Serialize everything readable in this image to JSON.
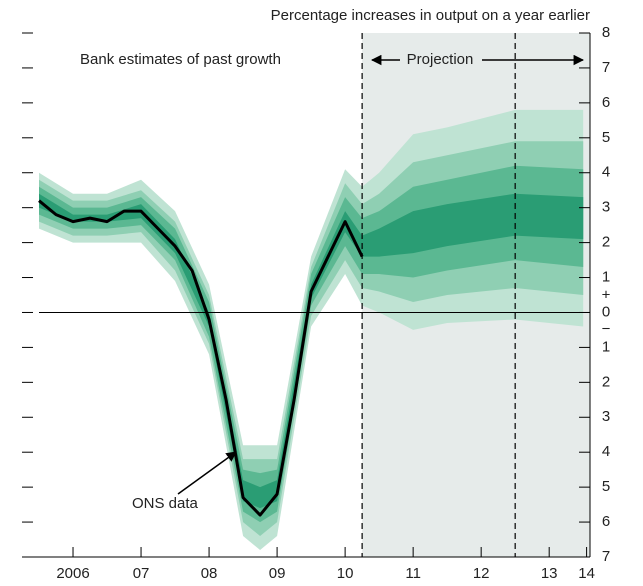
{
  "chart_data": {
    "type": "fan",
    "title": "Percentage increases in output on a year earlier",
    "annotations": {
      "past": "Bank estimates of past growth",
      "projection": "Projection"
    },
    "zero_signs": [
      "+",
      "−"
    ],
    "xlim": [
      2005.75,
      2014.1
    ],
    "ylim": [
      -7,
      8
    ],
    "xticks": [
      {
        "value": 2006.5,
        "label": "2006"
      },
      {
        "value": 2007.5,
        "label": "07"
      },
      {
        "value": 2008.5,
        "label": "08"
      },
      {
        "value": 2009.5,
        "label": "09"
      },
      {
        "value": 2010.5,
        "label": "10"
      },
      {
        "value": 2011.5,
        "label": "11"
      },
      {
        "value": 2012.5,
        "label": "12"
      },
      {
        "value": 2013.5,
        "label": "13"
      },
      {
        "value": 2014.05,
        "label": "14"
      }
    ],
    "yticks": [
      8,
      7,
      6,
      5,
      4,
      3,
      2,
      1,
      0,
      {
        "value": -1,
        "label": "1"
      },
      {
        "value": -2,
        "label": "2"
      },
      {
        "value": -3,
        "label": "3"
      },
      {
        "value": -4,
        "label": "4"
      },
      {
        "value": -5,
        "label": "5"
      },
      {
        "value": -6,
        "label": "6"
      },
      {
        "value": -7,
        "label": "7"
      }
    ],
    "projection_shade_from": 2010.75,
    "dashed_lines": [
      2010.75,
      2013.0
    ],
    "shade_color": "#e6ebea",
    "series": [
      {
        "name": "ONS data",
        "color": "#000000",
        "x": [
          2006.0,
          2006.25,
          2006.5,
          2006.75,
          2007.0,
          2007.25,
          2007.5,
          2007.75,
          2008.0,
          2008.25,
          2008.5,
          2008.75,
          2009.0,
          2009.25,
          2009.5,
          2009.75,
          2010.0,
          2010.25,
          2010.5,
          2010.75
        ],
        "values": [
          3.2,
          2.8,
          2.6,
          2.7,
          2.6,
          2.9,
          2.9,
          2.4,
          1.9,
          1.2,
          -0.2,
          -2.5,
          -5.3,
          -5.8,
          -5.2,
          -2.5,
          0.6,
          1.6,
          2.6,
          1.6
        ]
      }
    ],
    "fan": {
      "x": [
        2006.0,
        2006.5,
        2007.0,
        2007.5,
        2008.0,
        2008.5,
        2009.0,
        2009.25,
        2009.5,
        2010.0,
        2010.5,
        2010.75,
        2011.0,
        2011.5,
        2012.0,
        2013.0,
        2014.0
      ],
      "bands": [
        {
          "color": "#bfe3d3",
          "lower": [
            2.4,
            2.0,
            2.0,
            2.0,
            0.9,
            -1.2,
            -6.4,
            -6.8,
            -6.4,
            -0.4,
            1.1,
            0.2,
            0.0,
            -0.5,
            -0.3,
            -0.2,
            -0.4
          ],
          "upper": [
            4.0,
            3.4,
            3.4,
            3.8,
            2.9,
            0.8,
            -3.8,
            -3.8,
            -3.8,
            1.6,
            4.1,
            3.6,
            4.0,
            5.1,
            5.3,
            5.8,
            5.8
          ]
        },
        {
          "color": "#8fcfb3",
          "lower": [
            2.6,
            2.2,
            2.2,
            2.3,
            1.2,
            -0.9,
            -6.0,
            -6.4,
            -6.0,
            -0.1,
            1.5,
            0.7,
            0.6,
            0.3,
            0.5,
            0.7,
            0.5
          ],
          "upper": [
            3.8,
            3.2,
            3.2,
            3.5,
            2.6,
            0.5,
            -4.2,
            -4.2,
            -4.2,
            1.3,
            3.7,
            3.1,
            3.4,
            4.3,
            4.5,
            4.9,
            4.9
          ]
        },
        {
          "color": "#5bb892",
          "lower": [
            2.8,
            2.4,
            2.4,
            2.5,
            1.5,
            -0.7,
            -5.7,
            -6.0,
            -5.7,
            0.2,
            1.9,
            1.1,
            1.1,
            1.0,
            1.2,
            1.5,
            1.3
          ],
          "upper": [
            3.6,
            3.0,
            3.0,
            3.3,
            2.4,
            0.3,
            -4.5,
            -4.6,
            -4.5,
            1.1,
            3.3,
            2.7,
            2.9,
            3.6,
            3.8,
            4.2,
            4.1
          ]
        },
        {
          "color": "#2a9d74",
          "lower": [
            3.0,
            2.6,
            2.6,
            2.7,
            1.7,
            -0.4,
            -5.4,
            -5.6,
            -5.4,
            0.4,
            2.3,
            1.6,
            1.6,
            1.7,
            1.9,
            2.2,
            2.1
          ],
          "upper": [
            3.4,
            2.8,
            2.8,
            3.1,
            2.1,
            0.0,
            -4.8,
            -5.0,
            -4.8,
            0.8,
            2.9,
            2.2,
            2.4,
            2.9,
            3.1,
            3.4,
            3.3
          ]
        }
      ]
    }
  }
}
